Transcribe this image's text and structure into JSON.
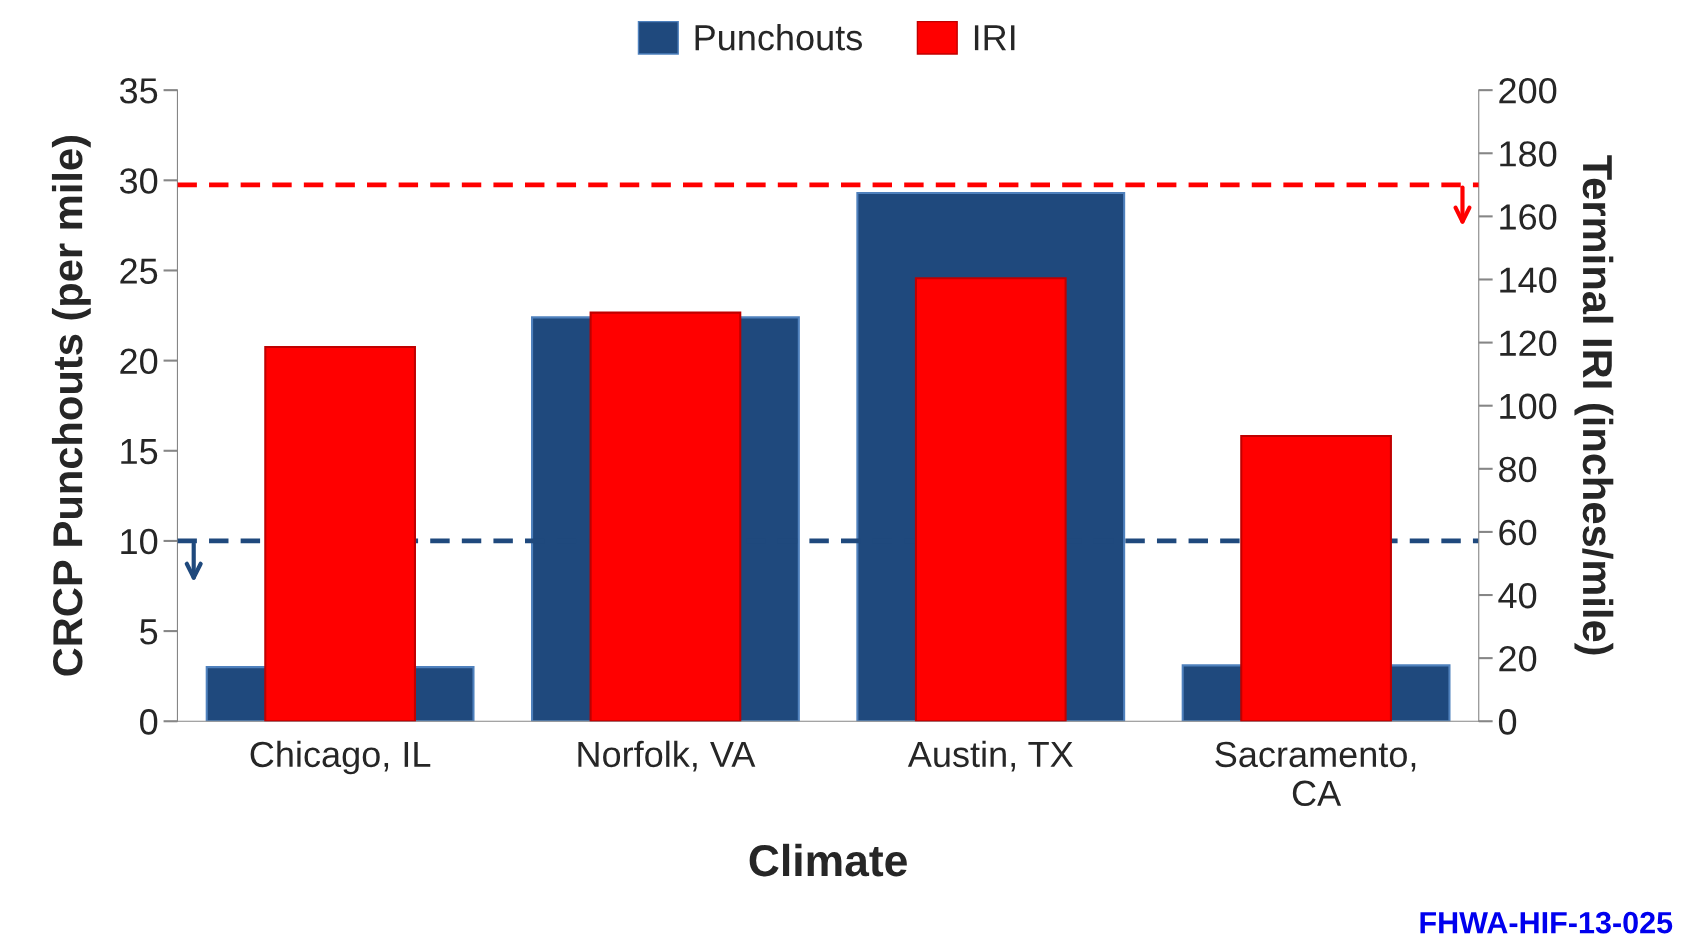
{
  "chart_data": {
    "type": "bar",
    "categories": [
      "Chicago, IL",
      "Norfolk, VA",
      "Austin, TX",
      "Sacramento,\nCA"
    ],
    "series": [
      {
        "name": "Punchouts",
        "color": "#1f497d",
        "values": [
          3.0,
          22.4,
          29.3,
          3.1
        ]
      },
      {
        "name": "IRI",
        "color": "#ff0000",
        "axis": "y2",
        "values": [
          118.6,
          129.5,
          140.4,
          90.4
        ]
      }
    ],
    "xlabel": "Climate",
    "ylabel": "CRCP Punchouts (per mile)",
    "y2label": "Terminal IRI (inches/mile)",
    "ylim": [
      0,
      35
    ],
    "yticks": [
      0,
      5,
      10,
      15,
      20,
      25,
      30,
      35
    ],
    "y2lim": [
      0,
      200
    ],
    "y2ticks": [
      0,
      20,
      40,
      60,
      80,
      100,
      120,
      140,
      160,
      180,
      200
    ],
    "ref_lines": [
      {
        "axis": "y2",
        "value": 170,
        "color": "#ff0000",
        "line_style": "dashed"
      },
      {
        "axis": "y",
        "value": 10,
        "color": "#1f497d",
        "line_style": "dashed"
      }
    ],
    "annotations": [
      "FHWA-HIF-13-025"
    ],
    "legend": "top",
    "grid": false
  }
}
